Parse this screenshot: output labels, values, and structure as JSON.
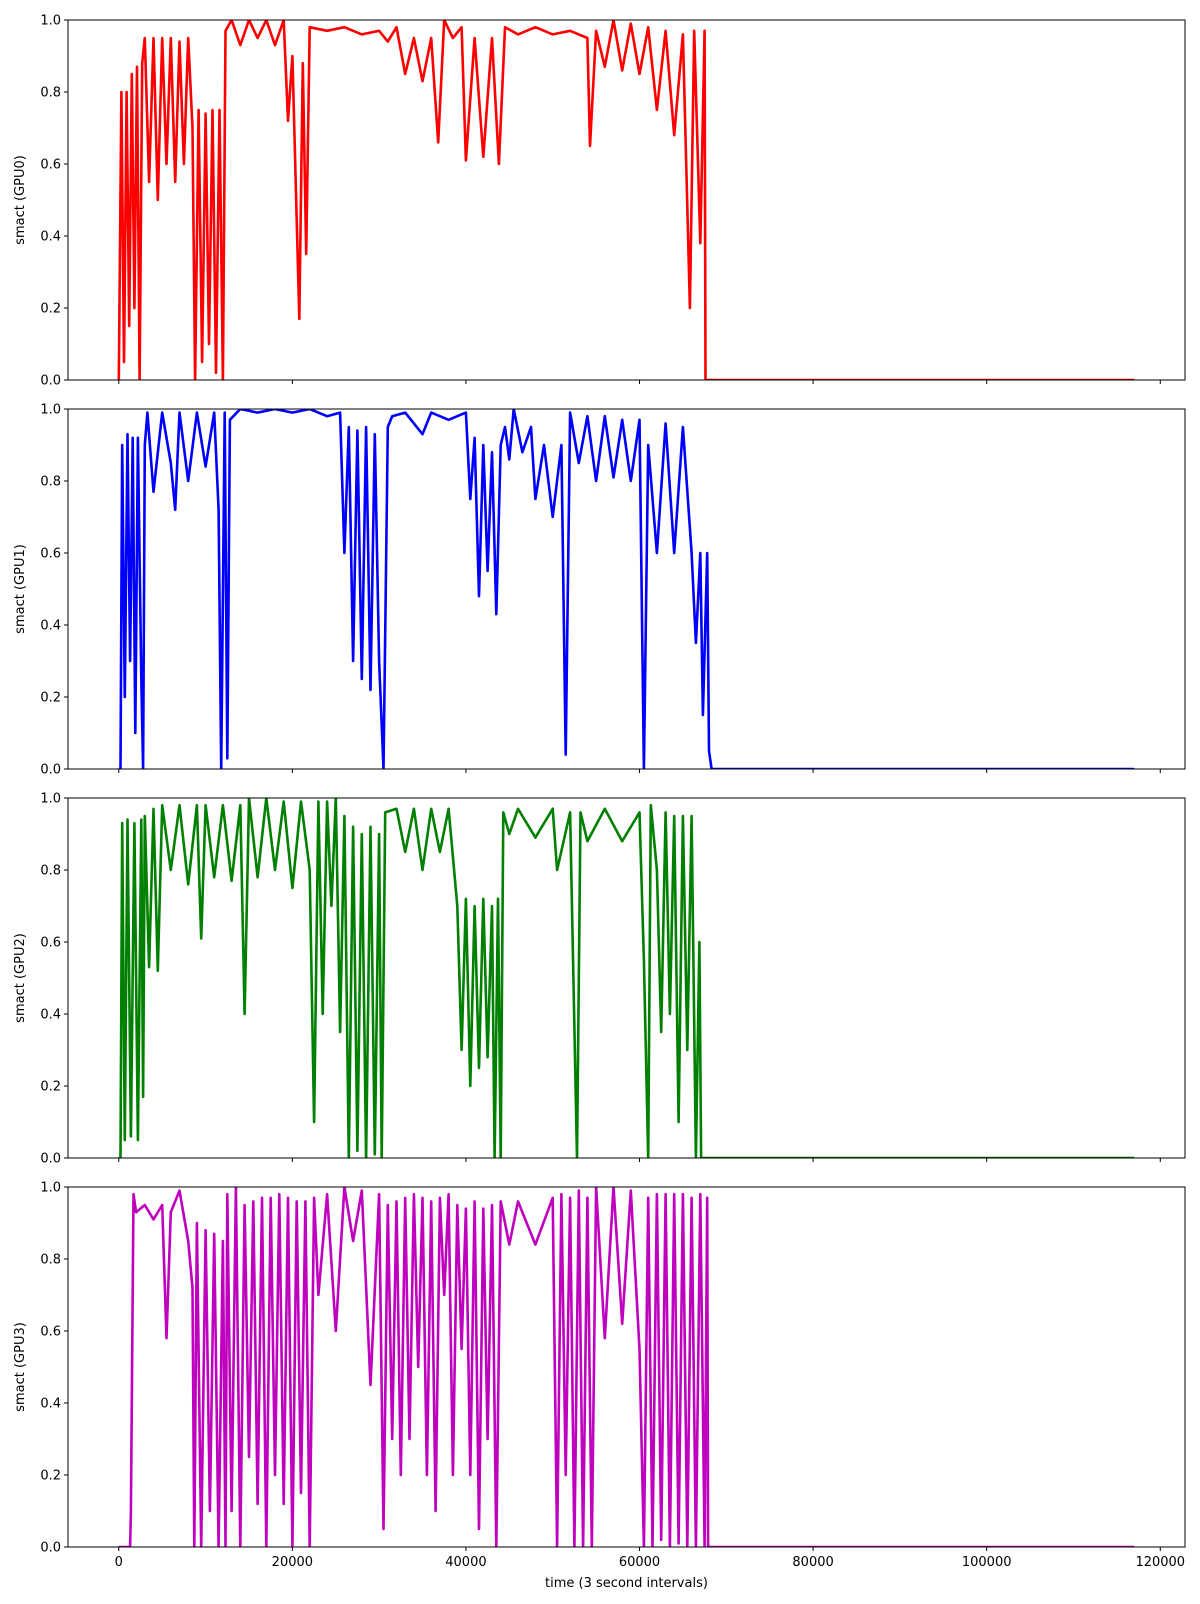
{
  "chart_data": [
    {
      "type": "line",
      "ylabel": "smact (GPU0)",
      "color": "#ff0000",
      "xlim": [
        -5850,
        122850
      ],
      "ylim": [
        0,
        1
      ],
      "yticks": [
        {
          "value": 0,
          "label": "0.0"
        },
        0.2,
        0.4,
        0.6,
        0.8,
        {
          "value": 1,
          "label": "1.0"
        }
      ],
      "x": [
        0,
        300,
        600,
        900,
        1200,
        1500,
        1800,
        2100,
        2400,
        2700,
        3000,
        3500,
        4000,
        4500,
        5000,
        5500,
        6000,
        6500,
        7000,
        7500,
        8000,
        8500,
        8800,
        9200,
        9600,
        10000,
        10400,
        10800,
        11200,
        11600,
        12000,
        12300,
        13000,
        14000,
        15000,
        16000,
        17000,
        18000,
        19000,
        19500,
        20000,
        20800,
        21200,
        21600,
        22000,
        24000,
        26000,
        28000,
        30000,
        31000,
        32000,
        33000,
        34000,
        35000,
        36000,
        36800,
        37500,
        38500,
        39500,
        40000,
        41000,
        42000,
        43000,
        43800,
        44500,
        46000,
        48000,
        50000,
        52000,
        54000,
        54300,
        55000,
        56000,
        57000,
        58000,
        59000,
        60000,
        61000,
        62000,
        63000,
        64000,
        65000,
        65800,
        66300,
        67000,
        67500,
        67600,
        117000
      ],
      "values": [
        0,
        0.8,
        0.05,
        0.8,
        0.15,
        0.85,
        0.2,
        0.87,
        0,
        0.88,
        0.95,
        0.55,
        0.95,
        0.5,
        0.95,
        0.6,
        0.95,
        0.55,
        0.94,
        0.6,
        0.95,
        0.7,
        0,
        0.75,
        0.05,
        0.74,
        0.1,
        0.75,
        0.02,
        0.75,
        0,
        0.97,
        1,
        0.93,
        1,
        0.95,
        1,
        0.93,
        1,
        0.72,
        0.9,
        0.17,
        0.88,
        0.35,
        0.98,
        0.97,
        0.98,
        0.96,
        0.97,
        0.94,
        0.98,
        0.85,
        0.95,
        0.83,
        0.95,
        0.66,
        1,
        0.95,
        0.98,
        0.61,
        0.95,
        0.62,
        0.95,
        0.6,
        0.98,
        0.96,
        0.98,
        0.96,
        0.97,
        0.95,
        0.65,
        0.97,
        0.87,
        1,
        0.86,
        0.99,
        0.85,
        0.98,
        0.75,
        0.97,
        0.68,
        0.96,
        0.2,
        0.97,
        0.38,
        0.97,
        0,
        0
      ]
    },
    {
      "type": "line",
      "ylabel": "smact (GPU1)",
      "color": "#0000ff",
      "xlim": [
        -5850,
        122850
      ],
      "ylim": [
        0,
        1
      ],
      "yticks": [
        {
          "value": 0,
          "label": "0.0"
        },
        0.2,
        0.4,
        0.6,
        0.8,
        {
          "value": 1,
          "label": "1.0"
        }
      ],
      "x": [
        0,
        200,
        400,
        700,
        1000,
        1300,
        1600,
        1900,
        2200,
        2600,
        2800,
        3000,
        3300,
        4000,
        5000,
        6000,
        6500,
        7000,
        8000,
        9000,
        10000,
        11000,
        11500,
        11800,
        12200,
        12500,
        12800,
        14000,
        16000,
        18000,
        20000,
        22000,
        24000,
        25500,
        26000,
        26500,
        27000,
        27500,
        28000,
        28500,
        29000,
        29500,
        30000,
        30500,
        31000,
        31500,
        33000,
        35000,
        36000,
        38000,
        40000,
        40500,
        41000,
        41500,
        42000,
        42500,
        43000,
        43500,
        44000,
        44500,
        45000,
        45500,
        46500,
        47500,
        48000,
        49000,
        50000,
        51000,
        51500,
        52000,
        53000,
        54000,
        55000,
        56000,
        57000,
        58000,
        59000,
        60000,
        60500,
        61000,
        62000,
        63000,
        64000,
        65000,
        66000,
        66500,
        67000,
        67300,
        67800,
        68000,
        68300,
        117000
      ],
      "values": [
        0,
        0,
        0.9,
        0.2,
        0.93,
        0.3,
        0.92,
        0.1,
        0.92,
        0.25,
        0,
        0.9,
        0.99,
        0.77,
        0.99,
        0.85,
        0.72,
        0.99,
        0.8,
        0.99,
        0.84,
        0.99,
        0.72,
        0,
        0.99,
        0.03,
        0.97,
        1,
        0.99,
        1,
        0.99,
        1,
        0.98,
        0.99,
        0.6,
        0.95,
        0.3,
        0.94,
        0.25,
        0.95,
        0.22,
        0.93,
        0.3,
        0,
        0.95,
        0.98,
        0.99,
        0.93,
        0.99,
        0.97,
        0.99,
        0.75,
        0.92,
        0.48,
        0.9,
        0.55,
        0.88,
        0.43,
        0.9,
        0.95,
        0.86,
        1,
        0.88,
        0.95,
        0.75,
        0.9,
        0.7,
        0.9,
        0.04,
        0.99,
        0.85,
        0.98,
        0.8,
        0.98,
        0.81,
        0.97,
        0.8,
        0.97,
        0,
        0.9,
        0.6,
        0.96,
        0.6,
        0.95,
        0.6,
        0.35,
        0.6,
        0.15,
        0.6,
        0.05,
        0,
        0
      ]
    },
    {
      "type": "line",
      "ylabel": "smact (GPU2)",
      "color": "#008000",
      "xlim": [
        -5850,
        122850
      ],
      "ylim": [
        0,
        1
      ],
      "yticks": [
        {
          "value": 0,
          "label": "0.0"
        },
        0.2,
        0.4,
        0.6,
        0.8,
        {
          "value": 1,
          "label": "1.0"
        }
      ],
      "x": [
        0,
        200,
        400,
        700,
        1000,
        1400,
        1800,
        2200,
        2600,
        2800,
        3000,
        3500,
        4000,
        4500,
        5000,
        6000,
        7000,
        8000,
        9000,
        9500,
        10000,
        11000,
        12000,
        13000,
        14000,
        14500,
        15000,
        16000,
        17000,
        18000,
        19000,
        20000,
        21000,
        22000,
        22500,
        23000,
        23500,
        24000,
        24500,
        25000,
        25500,
        26000,
        26500,
        27000,
        27500,
        28000,
        28500,
        29000,
        29500,
        30000,
        30300,
        30700,
        32000,
        33000,
        34000,
        35000,
        36000,
        37000,
        38000,
        39000,
        39500,
        40000,
        40500,
        41000,
        41500,
        42000,
        42500,
        43000,
        43300,
        43700,
        44000,
        44300,
        45000,
        46000,
        48000,
        50000,
        50500,
        52000,
        52800,
        53200,
        54000,
        56000,
        58000,
        60000,
        60500,
        61000,
        61300,
        62000,
        62500,
        63000,
        63500,
        64000,
        64500,
        65000,
        65500,
        66000,
        66500,
        66900,
        67100,
        117000
      ],
      "values": [
        0,
        0,
        0.93,
        0.05,
        0.94,
        0.06,
        0.93,
        0.05,
        0.94,
        0.17,
        0.95,
        0.53,
        0.97,
        0.52,
        0.98,
        0.8,
        0.98,
        0.76,
        0.98,
        0.61,
        0.98,
        0.78,
        0.98,
        0.77,
        0.98,
        0.4,
        1,
        0.78,
        1,
        0.8,
        0.99,
        0.75,
        0.99,
        0.8,
        0.1,
        0.99,
        0.4,
        0.99,
        0.7,
        1,
        0.35,
        0.95,
        0,
        0.92,
        0.02,
        0.9,
        0,
        0.92,
        0.01,
        0.9,
        0,
        0.96,
        0.97,
        0.85,
        0.97,
        0.8,
        0.97,
        0.85,
        0.97,
        0.7,
        0.3,
        0.72,
        0.2,
        0.7,
        0.25,
        0.72,
        0.28,
        0.7,
        0,
        0.72,
        0,
        0.96,
        0.9,
        0.97,
        0.89,
        0.97,
        0.8,
        0.96,
        0,
        0.96,
        0.88,
        0.97,
        0.88,
        0.96,
        0.55,
        0,
        0.98,
        0.8,
        0.35,
        0.96,
        0.4,
        0.95,
        0.1,
        0.95,
        0.3,
        0.95,
        0,
        0.6,
        0,
        0
      ]
    },
    {
      "type": "line",
      "ylabel": "smact (GPU3)",
      "xlabel": "time (3 second intervals)",
      "color": "#bf00bf",
      "xlim": [
        -5850,
        122850
      ],
      "ylim": [
        0,
        1
      ],
      "xticks": [
        0,
        20000,
        40000,
        60000,
        80000,
        100000,
        120000
      ],
      "yticks": [
        {
          "value": 0,
          "label": "0.0"
        },
        0.2,
        0.4,
        0.6,
        0.8,
        {
          "value": 1,
          "label": "1.0"
        }
      ],
      "x": [
        0,
        1300,
        1400,
        1700,
        2000,
        3000,
        4000,
        5000,
        5500,
        6000,
        7000,
        8000,
        8500,
        8700,
        9000,
        9500,
        10000,
        10500,
        11000,
        11500,
        12000,
        12300,
        12500,
        13000,
        13500,
        14000,
        14500,
        15000,
        15500,
        16000,
        16500,
        17000,
        17500,
        18000,
        18500,
        19000,
        19500,
        20000,
        20500,
        21000,
        21500,
        22000,
        22500,
        23000,
        24000,
        25000,
        26000,
        27000,
        28000,
        29000,
        30000,
        30500,
        31000,
        31500,
        32000,
        32500,
        33000,
        33500,
        34000,
        34500,
        35000,
        35500,
        36000,
        36500,
        37000,
        37500,
        38000,
        38500,
        39000,
        39500,
        40000,
        40500,
        41000,
        41500,
        42000,
        42500,
        43000,
        43500,
        44000,
        45000,
        46000,
        48000,
        50000,
        50500,
        51000,
        51500,
        52000,
        52500,
        53000,
        53500,
        54000,
        54500,
        55000,
        56000,
        57000,
        58000,
        59000,
        60000,
        60500,
        61000,
        61500,
        62000,
        62500,
        63000,
        63500,
        64000,
        64500,
        65000,
        65500,
        66000,
        66500,
        67000,
        67500,
        67800,
        67900,
        117000
      ],
      "values": [
        0,
        0,
        0.1,
        0.98,
        0.93,
        0.95,
        0.91,
        0.95,
        0.58,
        0.93,
        0.99,
        0.85,
        0.72,
        0,
        0.9,
        0,
        0.88,
        0.1,
        0.87,
        0,
        0.85,
        0,
        0.98,
        0.1,
        1,
        0,
        0.95,
        0.25,
        0.96,
        0.12,
        0.97,
        0,
        0.97,
        0.2,
        0.98,
        0.12,
        0.97,
        0,
        0.96,
        0.15,
        0.96,
        0,
        0.97,
        0.7,
        0.98,
        0.6,
        1,
        0.85,
        0.99,
        0.45,
        0.98,
        0.05,
        0.95,
        0.3,
        0.96,
        0.2,
        0.97,
        0.3,
        0.98,
        0.5,
        0.97,
        0.2,
        0.96,
        0.1,
        0.97,
        0.7,
        0.98,
        0.2,
        0.95,
        0.55,
        0.94,
        0.2,
        0.96,
        0.05,
        0.94,
        0.3,
        0.95,
        0,
        0.96,
        0.84,
        0.96,
        0.84,
        0.97,
        0,
        0.98,
        0.2,
        0.97,
        0,
        0.99,
        0,
        0.97,
        0,
        1,
        0.58,
        1,
        0.62,
        0.99,
        0.55,
        0,
        0.97,
        0,
        0.98,
        0.02,
        0.98,
        0,
        0.98,
        0.01,
        0.98,
        0,
        0.97,
        0,
        0.98,
        0,
        0.97,
        0,
        0
      ]
    }
  ]
}
